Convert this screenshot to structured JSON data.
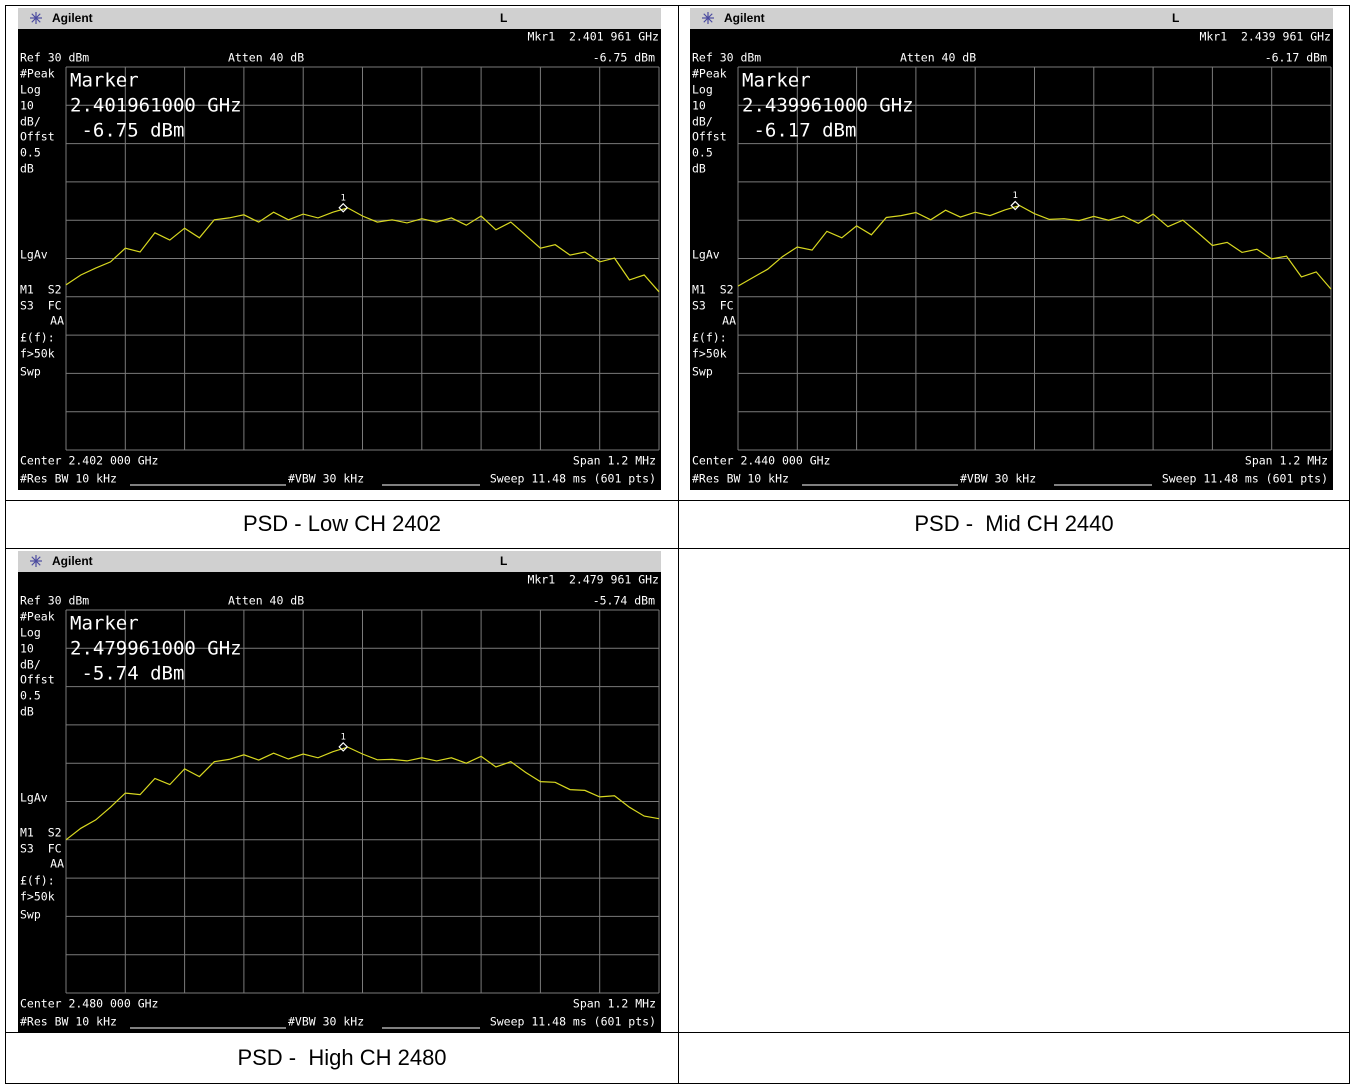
{
  "panels": [
    {
      "header": {
        "brand": "Agilent",
        "mode": "L"
      },
      "mkr_readout": "Mkr1  2.401 961 GHz",
      "mkr_level": "-6.75 dBm",
      "ref": "Ref 30 dBm",
      "atten": "Atten 40 dB",
      "side_labels": [
        "#Peak",
        "Log",
        "10",
        "dB/",
        "Offst",
        "0.5",
        "dB",
        "LgAv",
        "M1  S2",
        "S3  FC",
        "AA",
        "£(f):",
        "f>50k",
        "Swp"
      ],
      "marker_box": [
        "Marker",
        "2.401961000 GHz",
        " -6.75 dBm"
      ],
      "center": "Center 2.402 000 GHz",
      "span": "Span 1.2 MHz",
      "rbw": "#Res BW 10 kHz",
      "vbw": "#VBW 30 kHz",
      "sweep": "Sweep 11.48 ms (601 pts)",
      "chart_data": {
        "type": "line",
        "xlim": [
          2.4014,
          2.4026
        ],
        "ylim": [
          -70,
          30
        ],
        "color": "#d8d820",
        "values": [
          -26.9,
          -24.3,
          -22.5,
          -20.9,
          -17.3,
          -18.3,
          -13.3,
          -15.2,
          -12.1,
          -14.6,
          -9.9,
          -9.4,
          -8.6,
          -10.5,
          -7.9,
          -9.9,
          -8.4,
          -9.4,
          -7.9,
          -6.8,
          -8.9,
          -10.5,
          -9.9,
          -10.7,
          -9.6,
          -10.5,
          -9.4,
          -11.3,
          -8.9,
          -12.5,
          -10.5,
          -13.9,
          -17.3,
          -16.4,
          -19.1,
          -18.3,
          -20.9,
          -19.9,
          -25.6,
          -24.3,
          -28.7
        ],
        "marker": {
          "label": "1",
          "x": 2.401961,
          "y": -6.75
        }
      },
      "caption": "PSD - Low CH 2402"
    },
    {
      "header": {
        "brand": "Agilent",
        "mode": "L"
      },
      "mkr_readout": "Mkr1  2.439 961 GHz",
      "mkr_level": "-6.17 dBm",
      "ref": "Ref 30 dBm",
      "atten": "Atten 40 dB",
      "side_labels": [
        "#Peak",
        "Log",
        "10",
        "dB/",
        "Offst",
        "0.5",
        "dB",
        "LgAv",
        "M1  S2",
        "S3  FC",
        "AA",
        "£(f):",
        "f>50k",
        "Swp"
      ],
      "marker_box": [
        "Marker",
        "2.439961000 GHz",
        " -6.17 dBm"
      ],
      "center": "Center 2.440 000 GHz",
      "span": "Span 1.2 MHz",
      "rbw": "#Res BW 10 kHz",
      "vbw": "#VBW 30 kHz",
      "sweep": "Sweep 11.48 ms (601 pts)",
      "chart_data": {
        "type": "line",
        "xlim": [
          2.4394,
          2.4406
        ],
        "ylim": [
          -70,
          30
        ],
        "color": "#d8d820",
        "values": [
          -27.2,
          -25.0,
          -22.8,
          -19.5,
          -17.0,
          -17.8,
          -12.9,
          -14.6,
          -11.5,
          -13.8,
          -9.3,
          -8.8,
          -8.0,
          -9.9,
          -7.4,
          -9.2,
          -7.9,
          -8.8,
          -7.3,
          -6.2,
          -8.3,
          -9.8,
          -9.6,
          -10.1,
          -9.0,
          -10.0,
          -8.9,
          -10.8,
          -8.4,
          -11.7,
          -10.0,
          -13.2,
          -16.6,
          -15.8,
          -18.4,
          -17.6,
          -20.1,
          -19.4,
          -24.8,
          -23.5,
          -28.0
        ],
        "marker": {
          "label": "1",
          "x": 2.439961,
          "y": -6.17
        }
      },
      "caption": "PSD -  Mid CH 2440"
    },
    {
      "header": {
        "brand": "Agilent",
        "mode": "L"
      },
      "mkr_readout": "Mkr1  2.479 961 GHz",
      "mkr_level": "-5.74 dBm",
      "ref": "Ref 30 dBm",
      "atten": "Atten 40 dB",
      "side_labels": [
        "#Peak",
        "Log",
        "10",
        "dB/",
        "Offst",
        "0.5",
        "dB",
        "LgAv",
        "M1  S2",
        "S3  FC",
        "AA",
        "£(f):",
        "f>50k",
        "Swp"
      ],
      "marker_box": [
        "Marker",
        "2.479961000 GHz",
        " -5.74 dBm"
      ],
      "center": "Center 2.480 000 GHz",
      "span": "Span 1.2 MHz",
      "rbw": "#Res BW 10 kHz",
      "vbw": "#VBW 30 kHz",
      "sweep": "Sweep 11.48 ms (601 pts)",
      "chart_data": {
        "type": "line",
        "xlim": [
          2.4794,
          2.4806
        ],
        "ylim": [
          -70,
          30
        ],
        "color": "#d8d820",
        "values": [
          -30.0,
          -27.0,
          -24.8,
          -21.5,
          -17.8,
          -18.2,
          -14.0,
          -15.6,
          -11.5,
          -13.5,
          -9.6,
          -9.0,
          -7.8,
          -9.2,
          -7.4,
          -8.9,
          -7.6,
          -8.6,
          -7.0,
          -5.8,
          -7.6,
          -9.1,
          -9.0,
          -9.4,
          -8.6,
          -9.4,
          -8.6,
          -10.0,
          -8.2,
          -11.0,
          -9.6,
          -12.4,
          -14.8,
          -15.0,
          -16.9,
          -17.1,
          -18.8,
          -18.5,
          -21.5,
          -23.8,
          -24.5
        ],
        "marker": {
          "label": "1",
          "x": 2.479961,
          "y": -5.74
        }
      },
      "caption": "PSD -  High CH 2480"
    }
  ]
}
